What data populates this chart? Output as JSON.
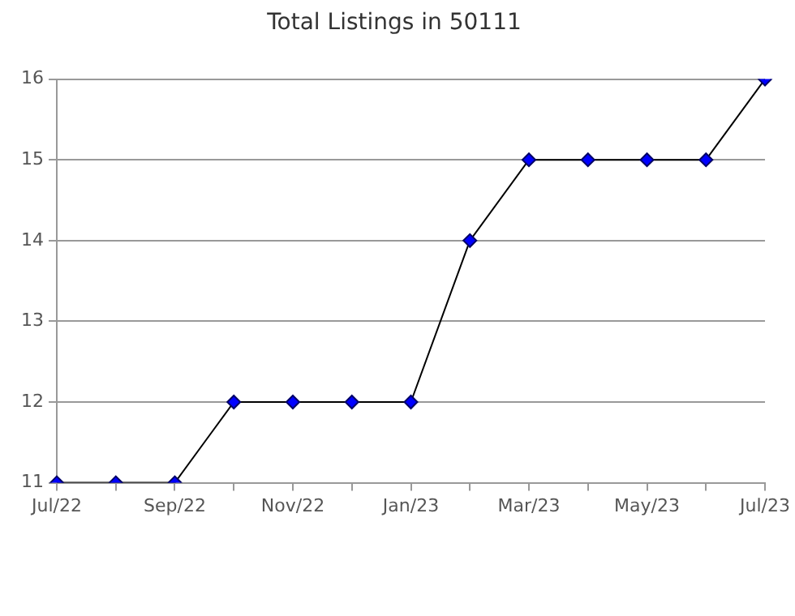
{
  "chart_data": {
    "type": "line",
    "title": "Total Listings in 50111",
    "categories": [
      "Jul/22",
      null,
      "Sep/22",
      null,
      "Nov/22",
      null,
      "Jan/23",
      null,
      "Mar/23",
      null,
      "May/23",
      null,
      "Jul/23"
    ],
    "series": [
      {
        "color": "#0000ff",
        "values": [
          11,
          11,
          11,
          12,
          12,
          12,
          12,
          14,
          15,
          15,
          15,
          15,
          16
        ]
      }
    ],
    "ylim": [
      11,
      16
    ],
    "yticks": [
      11,
      12,
      13,
      14,
      15,
      16
    ],
    "grid": "y",
    "legend": false,
    "marker": "diamond",
    "line_style": "solid"
  }
}
